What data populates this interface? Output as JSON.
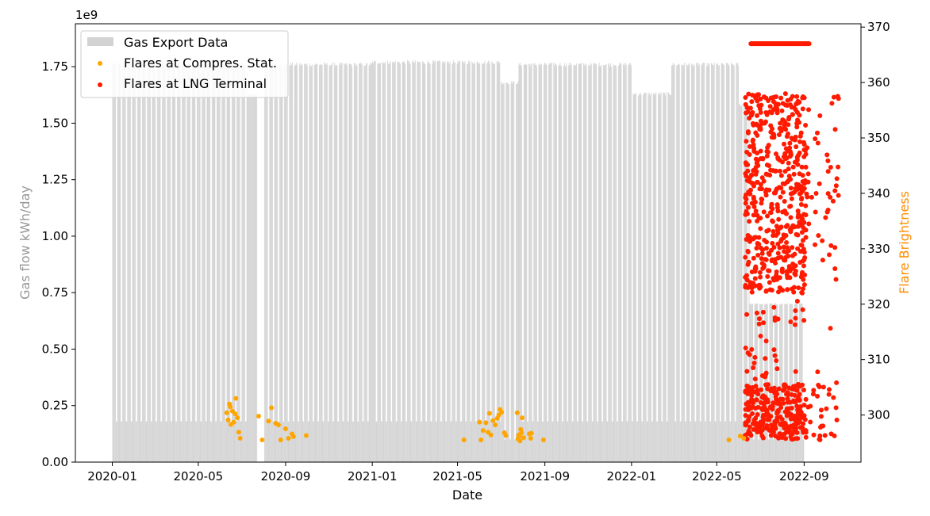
{
  "chart_data": {
    "type": "bar",
    "xlabel": "Date",
    "ylabel_left": "Gas flow kWh/day",
    "ylabel_right": "Flare Brightness",
    "y_offset_label": "1e9",
    "x_ticks": [
      "2020-01",
      "2020-05",
      "2020-09",
      "2021-01",
      "2021-05",
      "2021-09",
      "2022-01",
      "2022-05",
      "2022-09"
    ],
    "x_range": [
      "2019-11-10",
      "2022-11-20"
    ],
    "y_left_range": [
      0,
      1.94
    ],
    "y_left_ticks": [
      "0.00",
      "0.25",
      "0.50",
      "0.75",
      "1.00",
      "1.25",
      "1.50",
      "1.75"
    ],
    "y_right_range": [
      291.5,
      370.6
    ],
    "y_right_ticks": [
      "300",
      "310",
      "320",
      "330",
      "340",
      "350",
      "360",
      "370"
    ],
    "legend": {
      "position": "upper-left",
      "items": [
        "Gas Export Data",
        "Flares at Compres. Stat.",
        "Flares at LNG Terminal"
      ]
    },
    "colors": {
      "gas_export": "#d3d3d3",
      "flares_compressor": "#ffa500",
      "flares_lng": "#ff1a00",
      "left_axis_label": "#999999",
      "right_axis_label": "#ff8c00"
    },
    "series": [
      {
        "name": "Gas Export Data",
        "kind": "daily bar, Gas flow kWh/day (x1e9)",
        "segments": [
          {
            "from": "2020-01-01",
            "to": "2020-07-08",
            "value": 1.76,
            "alternate_low": 0.18
          },
          {
            "from": "2020-07-09",
            "to": "2020-07-22",
            "value": 1.63,
            "alternate_low": 1.63
          },
          {
            "from": "2020-08-02",
            "to": "2020-12-31",
            "value": 1.76,
            "alternate_low": 0.18
          },
          {
            "from": "2021-01-01",
            "to": "2021-06-30",
            "value": 1.77,
            "alternate_low": 0.18
          },
          {
            "from": "2021-07-01",
            "to": "2021-07-25",
            "value": 1.68,
            "alternate_low": 0.1
          },
          {
            "from": "2021-07-26",
            "to": "2022-01-02",
            "value": 1.76,
            "alternate_low": 0.18
          },
          {
            "from": "2022-01-03",
            "to": "2022-02-25",
            "value": 1.63,
            "alternate_low": 0.18
          },
          {
            "from": "2022-02-26",
            "to": "2022-05-31",
            "value": 1.76,
            "alternate_low": 0.18
          },
          {
            "from": "2022-06-01",
            "to": "2022-06-15",
            "value": 1.58,
            "alternate_low": 0.18
          },
          {
            "from": "2022-06-16",
            "to": "2022-08-31",
            "value": 0.7,
            "alternate_low": 0.1
          }
        ]
      },
      {
        "name": "Flares at Compres. Stat.",
        "kind": "scatter, Flare Brightness",
        "points": [
          [
            "2020-06-10",
            300.4
          ],
          [
            "2020-06-12",
            299.1
          ],
          [
            "2020-06-14",
            302.0
          ],
          [
            "2020-06-15",
            301.5
          ],
          [
            "2020-06-16",
            298.3
          ],
          [
            "2020-06-18",
            300.7
          ],
          [
            "2020-06-20",
            298.7
          ],
          [
            "2020-06-22",
            300.2
          ],
          [
            "2020-06-23",
            303.0
          ],
          [
            "2020-06-25",
            299.5
          ],
          [
            "2020-06-27",
            296.9
          ],
          [
            "2020-06-29",
            295.8
          ],
          [
            "2020-07-25",
            299.8
          ],
          [
            "2020-07-30",
            295.5
          ],
          [
            "2020-08-08",
            298.9
          ],
          [
            "2020-08-12",
            301.3
          ],
          [
            "2020-08-18",
            298.5
          ],
          [
            "2020-08-22",
            298.2
          ],
          [
            "2020-08-25",
            295.5
          ],
          [
            "2020-09-01",
            297.5
          ],
          [
            "2020-09-05",
            295.8
          ],
          [
            "2020-09-10",
            296.6
          ],
          [
            "2020-09-12",
            296.1
          ],
          [
            "2020-09-30",
            296.3
          ],
          [
            "2021-05-10",
            295.5
          ],
          [
            "2021-06-01",
            298.7
          ],
          [
            "2021-06-03",
            295.5
          ],
          [
            "2021-06-06",
            297.2
          ],
          [
            "2021-06-10",
            298.6
          ],
          [
            "2021-06-13",
            296.9
          ],
          [
            "2021-06-15",
            300.3
          ],
          [
            "2021-06-17",
            296.4
          ],
          [
            "2021-06-20",
            299.0
          ],
          [
            "2021-06-23",
            298.2
          ],
          [
            "2021-06-26",
            299.4
          ],
          [
            "2021-06-28",
            300.0
          ],
          [
            "2021-06-30",
            301.0
          ],
          [
            "2021-07-02",
            300.5
          ],
          [
            "2021-07-06",
            296.8
          ],
          [
            "2021-07-08",
            296.3
          ],
          [
            "2021-07-24",
            300.4
          ],
          [
            "2021-07-25",
            295.7
          ],
          [
            "2021-07-26",
            296.4
          ],
          [
            "2021-07-27",
            296.2
          ],
          [
            "2021-07-28",
            295.3
          ],
          [
            "2021-07-29",
            297.4
          ],
          [
            "2021-07-30",
            296.8
          ],
          [
            "2021-07-31",
            299.5
          ],
          [
            "2021-08-02",
            295.9
          ],
          [
            "2021-08-10",
            296.6
          ],
          [
            "2021-08-12",
            295.8
          ],
          [
            "2021-08-13",
            296.7
          ],
          [
            "2021-08-30",
            295.5
          ],
          [
            "2022-05-18",
            295.5
          ],
          [
            "2022-06-03",
            296.2
          ],
          [
            "2022-06-08",
            295.8
          ]
        ]
      },
      {
        "name": "Flares at LNG Terminal",
        "kind": "scatter, Flare Brightness",
        "range": [
          "2022-06-10",
          "2022-10-20"
        ],
        "brightness_range": [
          295.5,
          367.0
        ],
        "top_row_value": 367.0,
        "approx_count": 900
      }
    ]
  }
}
